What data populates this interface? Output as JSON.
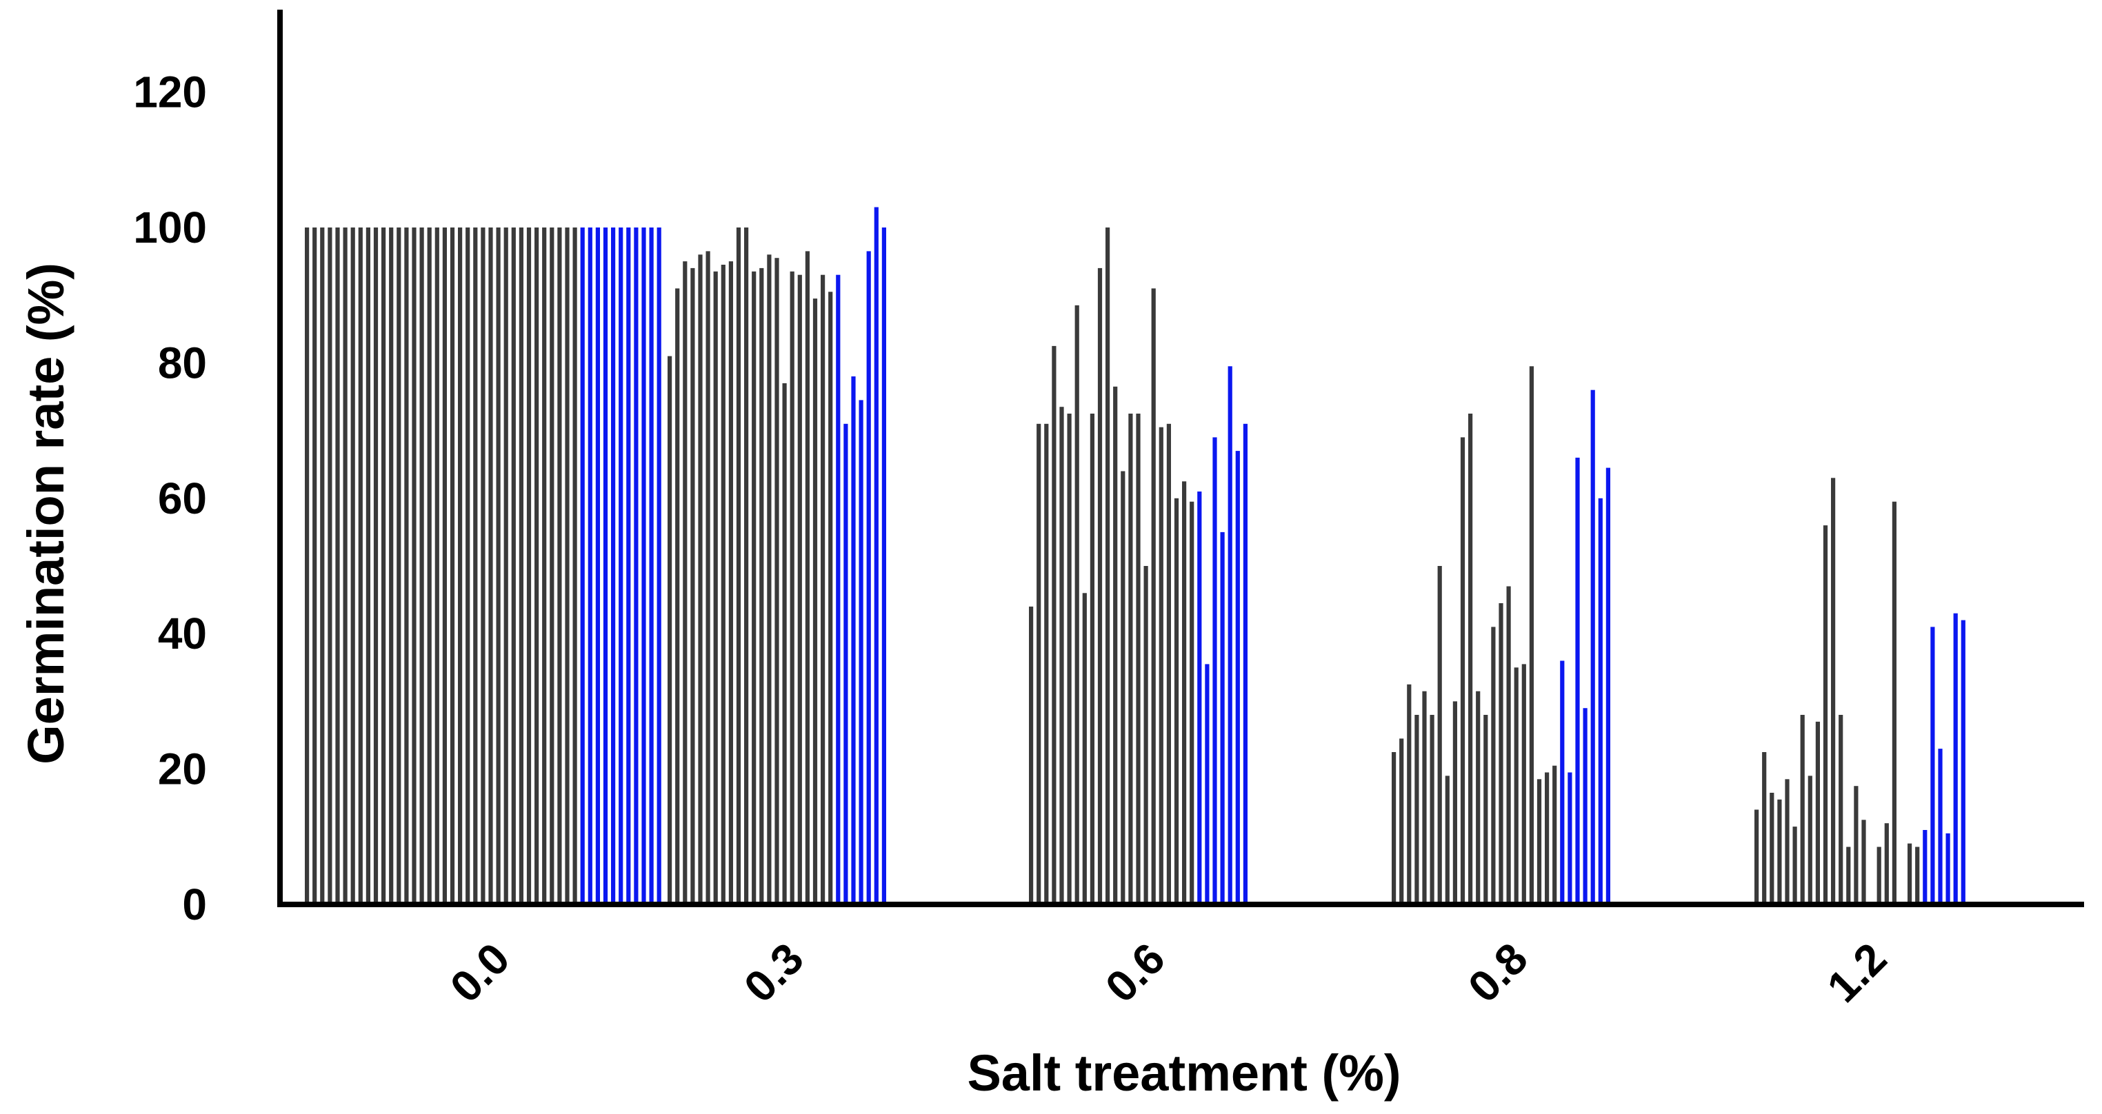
{
  "chart_data": {
    "type": "bar",
    "xlabel": "Salt treatment (%)",
    "ylabel": "Germination rate (%)",
    "ylim": [
      0,
      130
    ],
    "yticks": [
      0,
      20,
      40,
      60,
      80,
      100,
      120
    ],
    "grid": false,
    "legend": "none",
    "colors": {
      "series_a": "#3a3a3a",
      "series_b": "#0b17f0"
    },
    "groups": [
      {
        "label": "0.0",
        "series_a": [
          100,
          100,
          100,
          100,
          100,
          100,
          100,
          100,
          100,
          100,
          100,
          100,
          100,
          100,
          100,
          100,
          100,
          100,
          100,
          100,
          100,
          100,
          100,
          100,
          100,
          100,
          100,
          100,
          100,
          100,
          100,
          100,
          100,
          100,
          100,
          100
        ],
        "series_b": [
          100,
          100,
          100,
          100,
          100,
          100,
          100,
          100,
          100,
          100,
          100
        ]
      },
      {
        "label": "0.3",
        "series_a": [
          81,
          91,
          95,
          94,
          96,
          96.5,
          93.5,
          94.5,
          95,
          100,
          100,
          93.5,
          94,
          96,
          95.5,
          77,
          93.5,
          93,
          96.5,
          89.5,
          93,
          90.5
        ],
        "series_b": [
          93,
          71,
          78,
          74.5,
          96.5,
          103,
          100
        ]
      },
      {
        "label": "0.6",
        "series_a": [
          44,
          71,
          71,
          82.5,
          73.5,
          72.5,
          88.5,
          46,
          72.5,
          94,
          100,
          76.5,
          64,
          72.5,
          72.5,
          50,
          91,
          70.5,
          71,
          60,
          62.5,
          59.5
        ],
        "series_b": [
          61,
          35.5,
          69,
          55,
          79.5,
          67,
          71
        ]
      },
      {
        "label": "0.8",
        "series_a": [
          22.5,
          24.5,
          32.5,
          28,
          31.5,
          28,
          50,
          19,
          30,
          69,
          72.5,
          31.5,
          28,
          41,
          44.5,
          47,
          35,
          35.5,
          79.5,
          18.5,
          19.5,
          20.5
        ],
        "series_b": [
          36,
          19.5,
          66,
          29,
          76,
          60,
          64.5
        ]
      },
      {
        "label": "1.2",
        "series_a": [
          14,
          22.5,
          16.5,
          15.5,
          18.5,
          11.5,
          28,
          19,
          27,
          56,
          63,
          28,
          8.5,
          17.5,
          12.5,
          null,
          8.5,
          12,
          59.5,
          null,
          9,
          8.5
        ],
        "series_b": [
          11,
          41,
          23,
          10.5,
          43,
          42
        ]
      }
    ]
  }
}
